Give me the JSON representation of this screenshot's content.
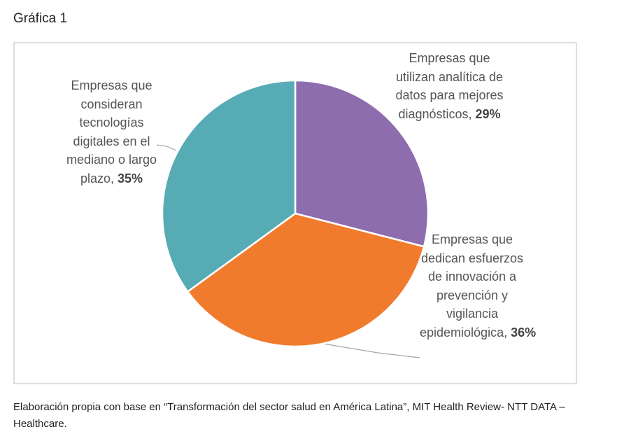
{
  "chart_data": {
    "type": "pie",
    "title": "Gráfica 1",
    "categories": [
      "Empresas que utilizan analítica de datos para mejores diagnósticos,",
      "Empresas que dedican esfuerzos de innovación a prevención y vigilancia epidemiológica,",
      "Empresas que consideran tecnologías digitales en el mediano o largo plazo,"
    ],
    "values": [
      29,
      36,
      35
    ],
    "value_labels": [
      "29%",
      "36%",
      "35%"
    ],
    "colors": [
      "#8e6daf",
      "#f07b2c",
      "#57abb5"
    ],
    "note": "Elaboración propia con base en “Transformación del sector salud en América Latina”, MIT Health Review- NTT DATA – Healthcare."
  }
}
